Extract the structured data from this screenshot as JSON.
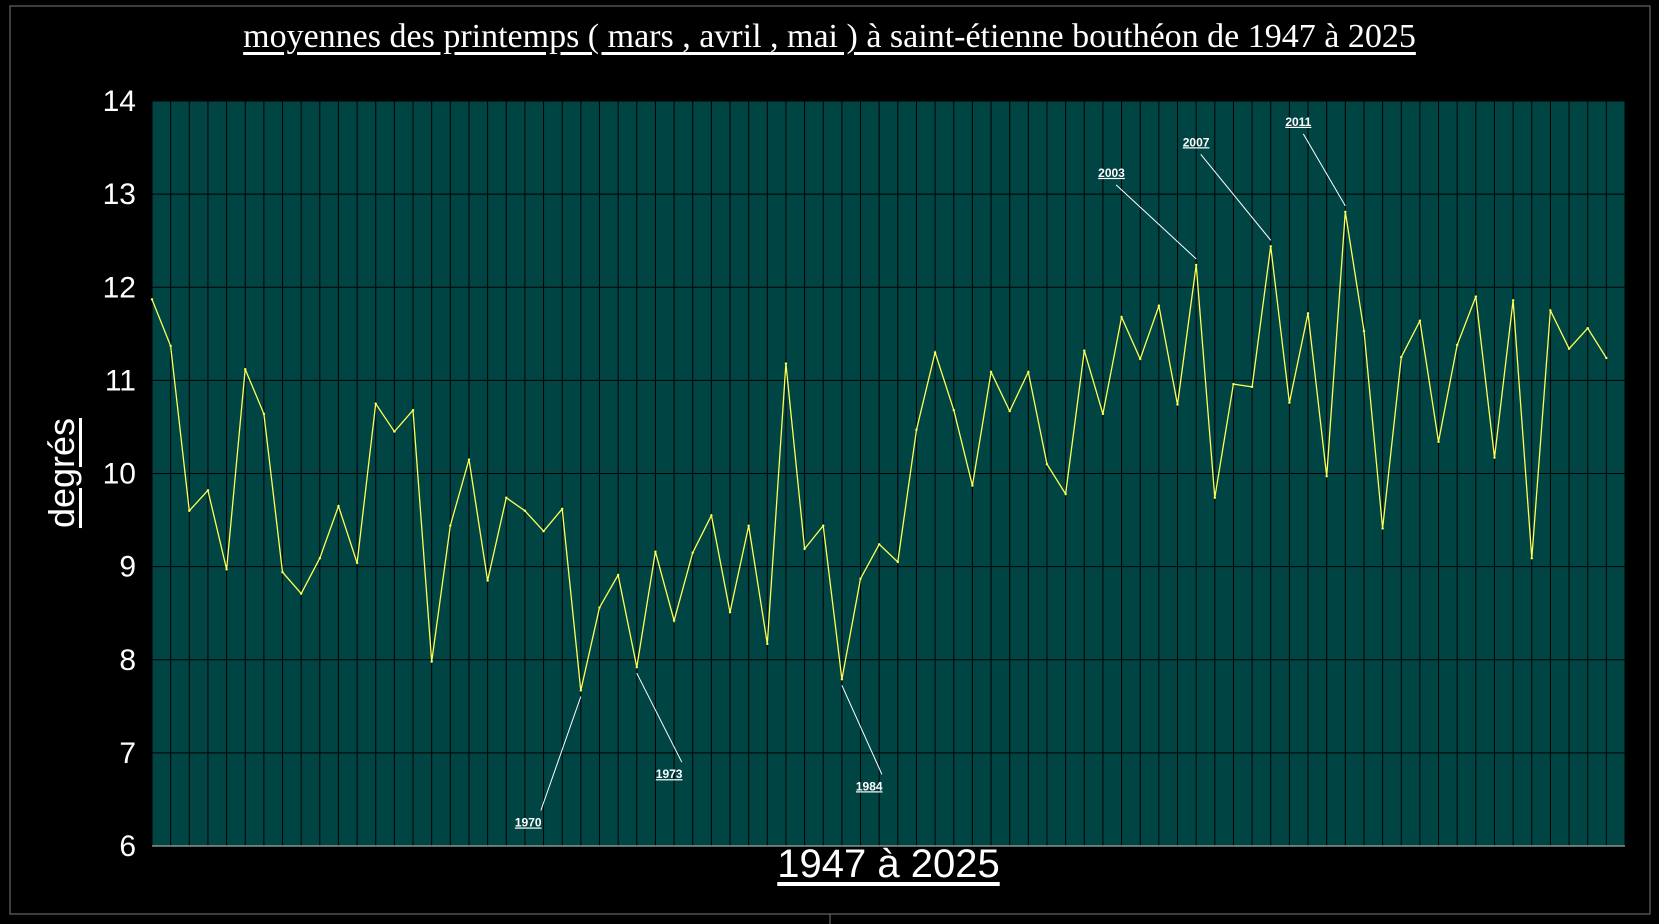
{
  "chart_data": {
    "type": "line",
    "title": "moyennes des printemps ( mars , avril , mai ) à saint-étienne bouthéon de 1947 à 2025",
    "xlabel": "1947  à  2025",
    "ylabel": "degrés",
    "ylim": [
      6,
      14
    ],
    "yticks": [
      "6",
      "7",
      "8",
      "9",
      "10",
      "11",
      "12",
      "13",
      "14"
    ],
    "xlim": [
      1947,
      2025
    ],
    "grid": true,
    "colors": {
      "background": "#000000",
      "plot_area": "#004444",
      "grid": "#000000",
      "line": "#ffff55",
      "text": "#ffffff"
    },
    "series": [
      {
        "x": [
          1947,
          1948,
          1949,
          1950,
          1951,
          1952,
          1953,
          1954,
          1955,
          1956,
          1957,
          1958,
          1959,
          1960,
          1961,
          1962,
          1963,
          1964,
          1965,
          1966,
          1967,
          1968,
          1969,
          1970,
          1971,
          1972,
          1973,
          1974,
          1975,
          1976,
          1977,
          1978,
          1979,
          1980,
          1981,
          1982,
          1983,
          1984,
          1985,
          1986,
          1987,
          1988,
          1989,
          1990,
          1991,
          1992,
          1993,
          1994,
          1995,
          1996,
          1997,
          1998,
          1999,
          2000,
          2001,
          2002,
          2003,
          2004,
          2005,
          2006,
          2007,
          2008,
          2009,
          2010,
          2011,
          2012,
          2013,
          2014,
          2015,
          2016,
          2017,
          2018,
          2019,
          2020,
          2021,
          2022,
          2023,
          2024,
          2025
        ],
        "values": [
          11.87,
          11.37,
          9.6,
          9.82,
          8.97,
          11.12,
          10.64,
          8.94,
          8.71,
          9.09,
          9.65,
          9.04,
          10.75,
          10.45,
          10.68,
          7.98,
          9.44,
          10.15,
          8.85,
          9.74,
          9.6,
          9.38,
          9.62,
          7.67,
          8.56,
          8.91,
          7.92,
          9.16,
          8.42,
          9.15,
          9.55,
          8.51,
          9.44,
          8.17,
          11.18,
          9.19,
          9.44,
          7.79,
          8.87,
          9.24,
          9.05,
          10.47,
          11.3,
          10.68,
          9.87,
          11.09,
          10.67,
          11.09,
          10.1,
          9.78,
          11.32,
          10.64,
          11.68,
          11.23,
          11.8,
          10.74,
          12.24,
          9.74,
          10.96,
          10.93,
          12.44,
          10.76,
          11.72,
          9.97,
          12.81,
          11.53,
          9.41,
          11.25,
          11.64,
          10.34,
          11.38,
          11.9,
          10.17,
          11.86,
          9.09,
          11.75,
          11.34,
          11.56,
          11.24
        ]
      }
    ],
    "annotations": [
      {
        "label": "1970",
        "year": 1970,
        "value": 7.67
      },
      {
        "label": "1973",
        "year": 1973,
        "value": 7.92
      },
      {
        "label": "1984",
        "year": 1984,
        "value": 7.79
      },
      {
        "label": "2003",
        "year": 2003,
        "value": 12.24
      },
      {
        "label": "2007",
        "year": 2007,
        "value": 12.44
      },
      {
        "label": "2011",
        "year": 2011,
        "value": 12.81
      }
    ]
  }
}
